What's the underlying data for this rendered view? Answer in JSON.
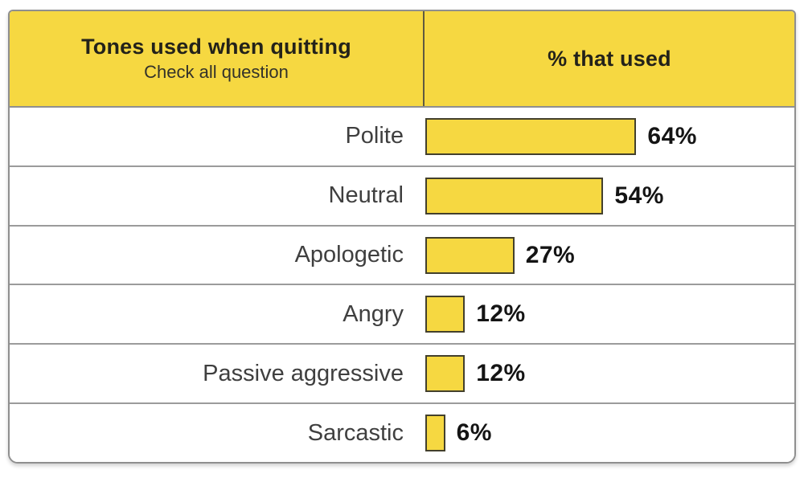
{
  "header": {
    "left_title": "Tones used when quitting",
    "left_subtitle": "Check all question",
    "right_title": "% that used"
  },
  "colors": {
    "yellow_fill": "#F6D841",
    "bar_border": "#43402C",
    "table_border": "#8F8F8F",
    "row_divider": "#9B9B9B",
    "header_divider": "#5E5A40",
    "label_text": "#3F3F3F",
    "value_text": "#141414",
    "header_text": "#23221A"
  },
  "chart_data": {
    "type": "bar",
    "orientation": "horizontal",
    "title": "Tones used when quitting",
    "subtitle": "Check all question",
    "value_column_header": "% that used",
    "categories": [
      "Polite",
      "Neutral",
      "Apologetic",
      "Angry",
      "Passive aggressive",
      "Sarcastic"
    ],
    "values": [
      64,
      54,
      27,
      12,
      12,
      6
    ],
    "value_labels": [
      "64%",
      "54%",
      "27%",
      "12%",
      "12%",
      "6%"
    ],
    "unit": "%",
    "xlim": [
      0,
      100
    ],
    "grid": false,
    "legend": false
  }
}
